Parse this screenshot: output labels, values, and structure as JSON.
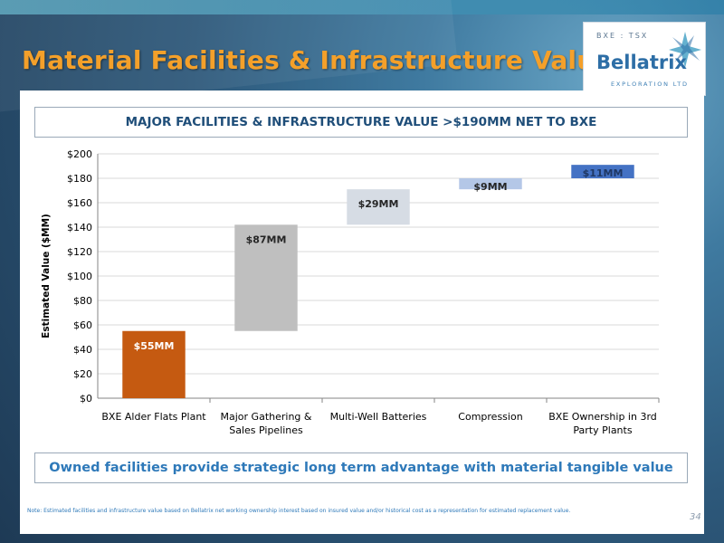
{
  "slide": {
    "title": "Material Facilities & Infrastructure Value",
    "callout": "Owned facilities provide strategic long term advantage with material tangible value",
    "note": "Note: Estimated facilities and infrastructure value based on Bellatrix net working ownership interest based on insured value and/or historical cost as a representation for estimated replacement value.",
    "page_number": "34"
  },
  "logo": {
    "ticker": "BXE : TSX",
    "name": "Bellatrix",
    "tagline": "EXPLORATION LTD"
  },
  "colors": {
    "title": "#f4a02a",
    "accent_blue": "#1f4e79",
    "callout_blue": "#2e79b9"
  },
  "chart_data": {
    "type": "bar",
    "subtype": "waterfall",
    "title": "MAJOR FACILITIES & INFRASTRUCTURE VALUE >$190MM NET TO BXE",
    "ylabel": "Estimated Value ($MM)",
    "xlabel": "",
    "ylim": [
      0,
      200
    ],
    "yticks": [
      0,
      20,
      40,
      60,
      80,
      100,
      120,
      140,
      160,
      180,
      200
    ],
    "ytick_labels": [
      "$0",
      "$20",
      "$40",
      "$60",
      "$80",
      "$100",
      "$120",
      "$140",
      "$160",
      "$180",
      "$200"
    ],
    "categories": [
      [
        "BXE Alder Flats Plant"
      ],
      [
        "Major Gathering &",
        "Sales Pipelines"
      ],
      [
        "Multi-Well Batteries"
      ],
      [
        "Compression"
      ],
      [
        "BXE Ownership in 3rd",
        "Party Plants"
      ]
    ],
    "values": [
      55,
      87,
      29,
      9,
      11
    ],
    "bases": [
      0,
      55,
      142,
      171,
      180
    ],
    "data_labels": [
      "$55MM",
      "$87MM",
      "$29MM",
      "$9MM",
      "$11MM"
    ],
    "bar_colors": [
      "#c55a11",
      "#bfbfbf",
      "#d6dce4",
      "#b4c7e7",
      "#4472c4"
    ],
    "label_colors": [
      "#ffffff",
      "#262626",
      "#262626",
      "#262626",
      "#1f3864"
    ],
    "grid": true,
    "legend": "none"
  }
}
